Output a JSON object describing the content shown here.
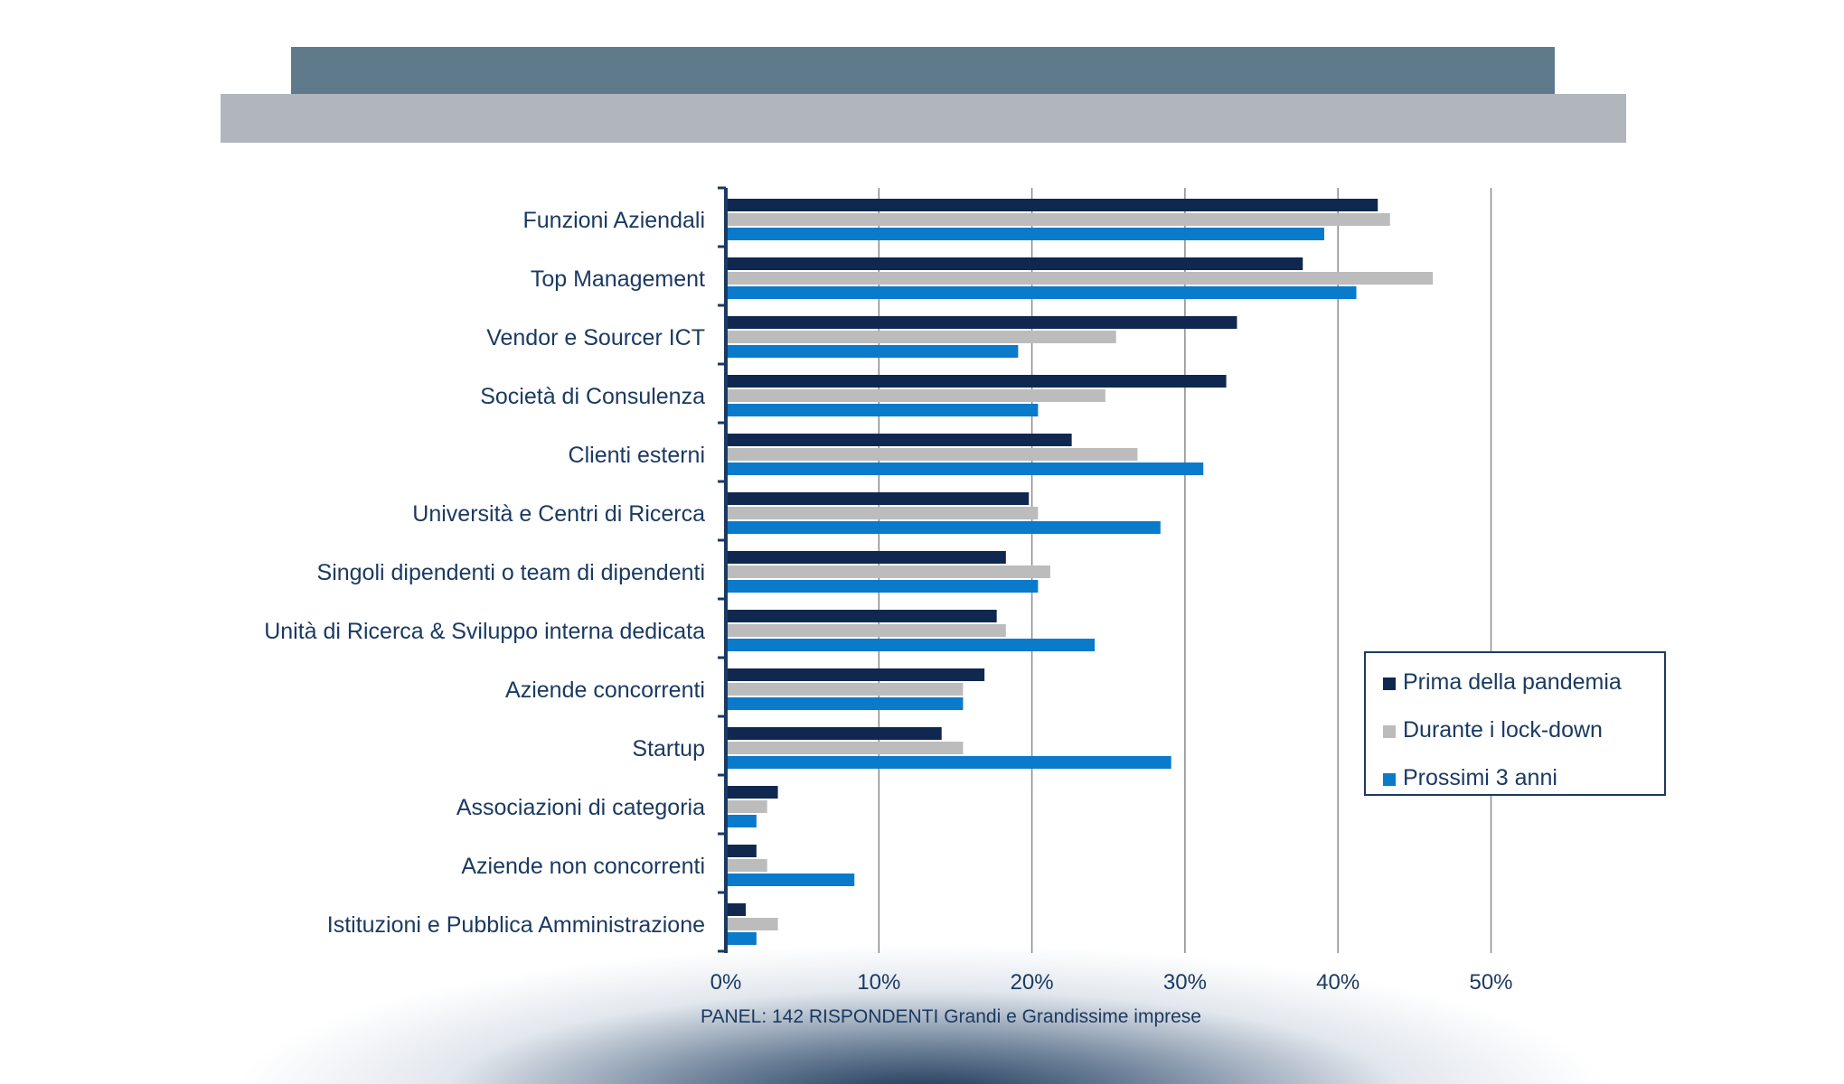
{
  "chart_data": {
    "type": "bar",
    "orientation": "horizontal",
    "title": "",
    "categories": [
      "Funzioni Aziendali",
      "Top Management",
      "Vendor e Sourcer ICT",
      "Società di Consulenza",
      "Clienti esterni",
      "Università e Centri di Ricerca",
      "Singoli dipendenti o team di dipendenti",
      "Unità di Ricerca & Sviluppo interna dedicata",
      "Aziende concorrenti",
      "Startup",
      "Associazioni di categoria",
      "Aziende non concorrenti",
      "Istituzioni e Pubblica Amministrazione"
    ],
    "series": [
      {
        "name": "Prima della pandemia",
        "values": [
          42.6,
          37.7,
          33.4,
          32.7,
          22.6,
          19.8,
          18.3,
          17.7,
          16.9,
          14.1,
          3.4,
          2.0,
          1.3
        ]
      },
      {
        "name": "Durante i lock-down",
        "values": [
          43.4,
          46.2,
          25.5,
          24.8,
          26.9,
          20.4,
          21.2,
          18.3,
          15.5,
          15.5,
          2.7,
          2.7,
          3.4
        ]
      },
      {
        "name": "Prossimi 3 anni",
        "values": [
          39.1,
          41.2,
          19.1,
          20.4,
          31.2,
          28.4,
          20.4,
          24.1,
          15.5,
          29.1,
          2.0,
          8.4,
          2.0
        ]
      }
    ],
    "xlim": [
      0,
      50
    ],
    "x_ticks": [
      "0%",
      "10%",
      "20%",
      "30%",
      "40%",
      "50%"
    ],
    "xlabel": "PANEL: 142 RISPONDENTI Grandi e Grandissime imprese",
    "ylabel": "",
    "grid": "vertical",
    "legend_position": "right",
    "colors": {
      "Prima della pandemia": "#10284f",
      "Durante i lock-down": "#bcbcbc",
      "Prossimi 3 anni": "#0a7acb",
      "axis": "#1b3a62",
      "grid": "#8a8a8a",
      "text": "#1b3a62",
      "header_dark": "#5f7a8b",
      "header_light": "#b1b6bd"
    }
  }
}
